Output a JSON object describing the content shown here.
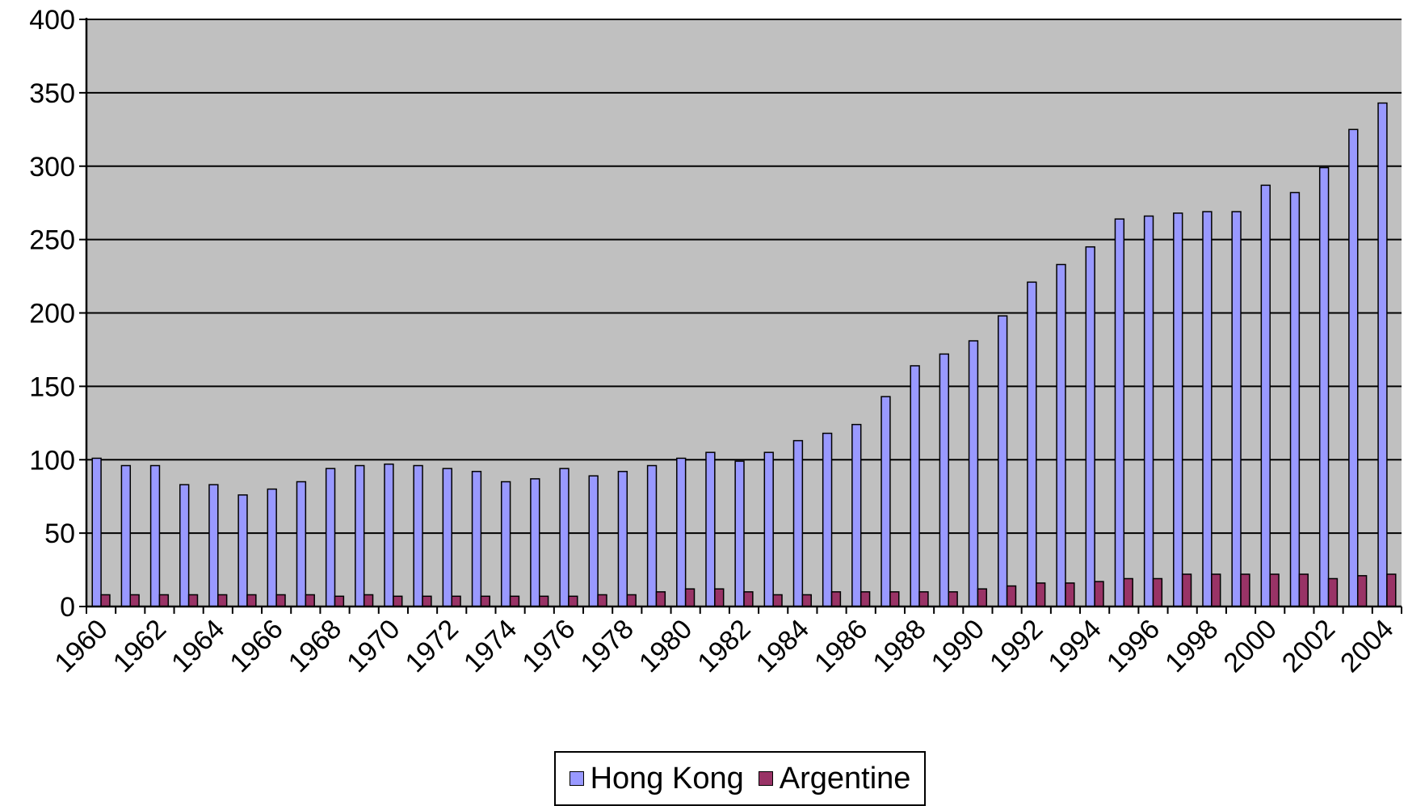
{
  "chart_data": {
    "type": "bar",
    "title": "",
    "xlabel": "",
    "ylabel": "",
    "ylim": [
      0,
      400
    ],
    "y_ticks": [
      "0",
      "50",
      "100",
      "150",
      "200",
      "250",
      "300",
      "350",
      "400"
    ],
    "grid": true,
    "plot_background": "#C0C0C0",
    "legend_position": "bottom",
    "categories": [
      "1960",
      "1961",
      "1962",
      "1963",
      "1964",
      "1965",
      "1966",
      "1967",
      "1968",
      "1969",
      "1970",
      "1971",
      "1972",
      "1973",
      "1974",
      "1975",
      "1976",
      "1977",
      "1978",
      "1979",
      "1980",
      "1981",
      "1982",
      "1983",
      "1984",
      "1985",
      "1986",
      "1987",
      "1988",
      "1989",
      "1990",
      "1991",
      "1992",
      "1993",
      "1994",
      "1995",
      "1996",
      "1997",
      "1998",
      "1999",
      "2000",
      "2001",
      "2002",
      "2003",
      "2004"
    ],
    "x_tick_labels": [
      "1960",
      "1962",
      "1964",
      "1966",
      "1968",
      "1970",
      "1972",
      "1974",
      "1976",
      "1978",
      "1980",
      "1982",
      "1984",
      "1986",
      "1988",
      "1990",
      "1992",
      "1994",
      "1996",
      "1998",
      "2000",
      "2002",
      "2004"
    ],
    "series": [
      {
        "name": "Hong Kong",
        "color": "#9999FF",
        "values": [
          101,
          96,
          96,
          83,
          83,
          76,
          80,
          85,
          94,
          96,
          97,
          96,
          94,
          92,
          85,
          87,
          94,
          89,
          92,
          96,
          101,
          105,
          99,
          105,
          113,
          118,
          124,
          143,
          164,
          172,
          181,
          198,
          221,
          233,
          245,
          264,
          266,
          268,
          269,
          269,
          287,
          282,
          299,
          325,
          343
        ]
      },
      {
        "name": "Argentine",
        "color": "#993366",
        "values": [
          8,
          8,
          8,
          8,
          8,
          8,
          8,
          8,
          7,
          8,
          7,
          7,
          7,
          7,
          7,
          7,
          7,
          8,
          8,
          10,
          12,
          12,
          10,
          8,
          8,
          10,
          10,
          10,
          10,
          10,
          12,
          14,
          16,
          16,
          17,
          19,
          19,
          22,
          22,
          22,
          22,
          22,
          19,
          21,
          22
        ]
      }
    ]
  }
}
